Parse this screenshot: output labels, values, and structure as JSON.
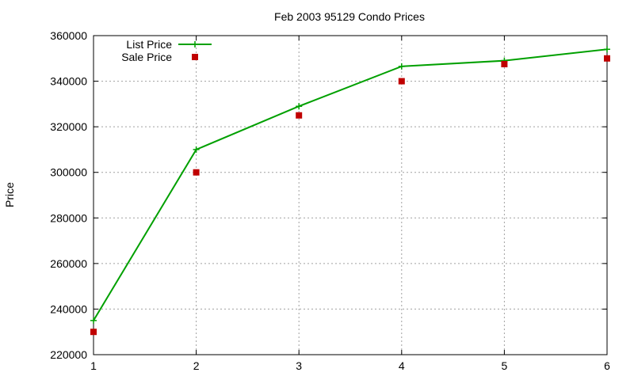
{
  "chart_data": {
    "type": "line",
    "title": "Feb 2003 95129 Condo Prices",
    "xlabel": "",
    "ylabel": "Price",
    "x": [
      1,
      2,
      3,
      4,
      5,
      6
    ],
    "xlim": [
      1,
      6
    ],
    "ylim": [
      220000,
      360000
    ],
    "xticks": [
      1,
      2,
      3,
      4,
      5,
      6
    ],
    "yticks": [
      220000,
      240000,
      260000,
      280000,
      300000,
      320000,
      340000,
      360000
    ],
    "grid": true,
    "legend_position": "top-left",
    "series": [
      {
        "name": "List Price",
        "style": "line-with-plus-markers",
        "color": "#00a000",
        "values": [
          235000,
          310000,
          329000,
          346500,
          349000,
          354000
        ]
      },
      {
        "name": "Sale Price",
        "style": "square-markers",
        "color": "#c00000",
        "values": [
          230000,
          300000,
          325000,
          340000,
          347500,
          350000
        ]
      }
    ]
  }
}
